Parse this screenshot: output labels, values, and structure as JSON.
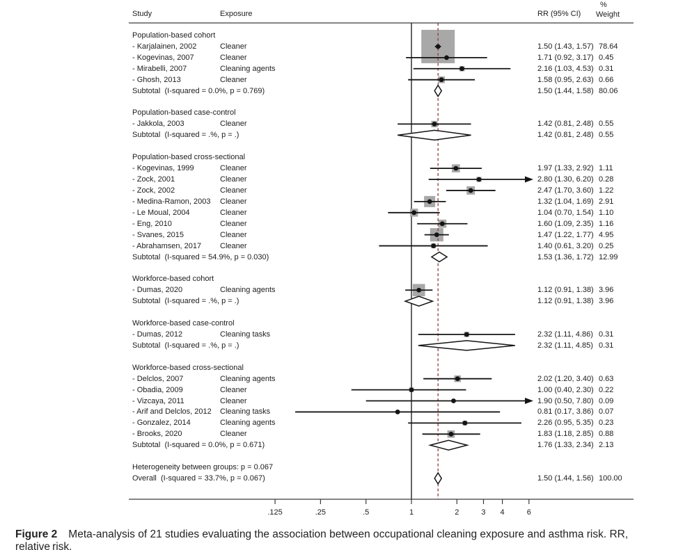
{
  "figure": {
    "caption_label": "Figure 2",
    "caption_text": "Meta-analysis of 21 studies evaluating the association between occupational cleaning exposure and asthma risk. RR, relative risk."
  },
  "chart_data": {
    "type": "forest",
    "columns": {
      "study": "Study",
      "exposure": "Exposure",
      "rr": "RR (95% CI)",
      "weight_pct_symbol": "%",
      "weight": "Weight"
    },
    "x_axis": {
      "scale": "log",
      "tick_labels": [
        ".125",
        ".25",
        ".5",
        "1",
        "2",
        "3",
        "4",
        "6"
      ],
      "tick_values": [
        0.125,
        0.25,
        0.5,
        1,
        2,
        3,
        4,
        6
      ],
      "null_value": 1,
      "overall_value": 1.5,
      "clip_upper": 6.1
    },
    "colors": {
      "overall_dashed_line": "#8e3b3b",
      "marker": "#141414",
      "weight_square": "#a8a8a8",
      "diamond_fill": "#ffffff",
      "rule": "#3a3a3a",
      "text": "#1c1c1c"
    },
    "groups": [
      {
        "label": "Population-based cohort",
        "studies": [
          {
            "study": "- Karjalainen, 2002",
            "exposure": "Cleaner",
            "rr": 1.5,
            "lo": 1.43,
            "hi": 1.57,
            "weight": 78.64
          },
          {
            "study": "- Kogevinas, 2007",
            "exposure": "Cleaner",
            "rr": 1.71,
            "lo": 0.92,
            "hi": 3.17,
            "weight": 0.45
          },
          {
            "study": "- Mirabelli, 2007",
            "exposure": "Cleaning agents",
            "rr": 2.16,
            "lo": 1.03,
            "hi": 4.53,
            "weight": 0.31
          },
          {
            "study": "- Ghosh, 2013",
            "exposure": "Cleaner",
            "rr": 1.58,
            "lo": 0.95,
            "hi": 2.63,
            "weight": 0.66
          }
        ],
        "subtotal": {
          "label": "Subtotal  (I-squared = 0.0%, p = 0.769)",
          "rr": 1.5,
          "lo": 1.44,
          "hi": 1.58,
          "weight": 80.06
        }
      },
      {
        "label": "Population-based case-control",
        "studies": [
          {
            "study": "- Jakkola, 2003",
            "exposure": "Cleaner",
            "rr": 1.42,
            "lo": 0.81,
            "hi": 2.48,
            "weight": 0.55
          }
        ],
        "subtotal": {
          "label": "Subtotal  (I-squared = .%, p = .)",
          "rr": 1.42,
          "lo": 0.81,
          "hi": 2.48,
          "weight": 0.55
        }
      },
      {
        "label": "Population-based cross-sectional",
        "studies": [
          {
            "study": "- Kogevinas, 1999",
            "exposure": "Cleaner",
            "rr": 1.97,
            "lo": 1.33,
            "hi": 2.92,
            "weight": 1.11
          },
          {
            "study": "- Zock, 2001",
            "exposure": "Cleaner",
            "rr": 2.8,
            "lo": 1.3,
            "hi": 6.2,
            "weight": 0.28
          },
          {
            "study": "- Zock, 2002",
            "exposure": "Cleaner",
            "rr": 2.47,
            "lo": 1.7,
            "hi": 3.6,
            "weight": 1.22
          },
          {
            "study": "- Medina-Ramon, 2003",
            "exposure": "Cleaner",
            "rr": 1.32,
            "lo": 1.04,
            "hi": 1.69,
            "weight": 2.91
          },
          {
            "study": "- Le Moual, 2004",
            "exposure": "Cleaner",
            "rr": 1.04,
            "lo": 0.7,
            "hi": 1.54,
            "weight": 1.1
          },
          {
            "study": "- Eng, 2010",
            "exposure": "Cleaner",
            "rr": 1.6,
            "lo": 1.09,
            "hi": 2.35,
            "weight": 1.16
          },
          {
            "study": "- Svanes, 2015",
            "exposure": "Cleaner",
            "rr": 1.47,
            "lo": 1.22,
            "hi": 1.77,
            "weight": 4.95
          },
          {
            "study": "- Abrahamsen, 2017",
            "exposure": "Cleaner",
            "rr": 1.4,
            "lo": 0.61,
            "hi": 3.2,
            "weight": 0.25
          }
        ],
        "subtotal": {
          "label": "Subtotal  (I-squared = 54.9%, p = 0.030)",
          "rr": 1.53,
          "lo": 1.36,
          "hi": 1.72,
          "weight": 12.99
        }
      },
      {
        "label": "Workforce-based cohort",
        "studies": [
          {
            "study": "- Dumas, 2020",
            "exposure": "Cleaning agents",
            "rr": 1.12,
            "lo": 0.91,
            "hi": 1.38,
            "weight": 3.96
          }
        ],
        "subtotal": {
          "label": "Subtotal  (I-squared = .%, p = .)",
          "rr": 1.12,
          "lo": 0.91,
          "hi": 1.38,
          "weight": 3.96
        }
      },
      {
        "label": "Workforce-based case-control",
        "studies": [
          {
            "study": "- Dumas, 2012",
            "exposure": "Cleaning tasks",
            "rr": 2.32,
            "lo": 1.11,
            "hi": 4.86,
            "weight": 0.31
          }
        ],
        "subtotal": {
          "label": "Subtotal  (I-squared = .%, p = .)",
          "rr": 2.32,
          "lo": 1.11,
          "hi": 4.85,
          "weight": 0.31
        }
      },
      {
        "label": "Workforce-based cross-sectional",
        "studies": [
          {
            "study": "- Delclos, 2007",
            "exposure": "Cleaning agents",
            "rr": 2.02,
            "lo": 1.2,
            "hi": 3.4,
            "weight": 0.63
          },
          {
            "study": "- Obadia, 2009",
            "exposure": "Cleaner",
            "rr": 1.0,
            "lo": 0.4,
            "hi": 2.3,
            "weight": 0.22
          },
          {
            "study": "- Vizcaya, 2011",
            "exposure": "Cleaner",
            "rr": 1.9,
            "lo": 0.5,
            "hi": 7.8,
            "weight": 0.09
          },
          {
            "study": "- Arif and Delclos, 2012",
            "exposure": "Cleaning tasks",
            "rr": 0.81,
            "lo": 0.17,
            "hi": 3.86,
            "weight": 0.07
          },
          {
            "study": "- Gonzalez, 2014",
            "exposure": "Cleaning agents",
            "rr": 2.26,
            "lo": 0.95,
            "hi": 5.35,
            "weight": 0.23
          },
          {
            "study": "- Brooks, 2020",
            "exposure": "Cleaner",
            "rr": 1.83,
            "lo": 1.18,
            "hi": 2.85,
            "weight": 0.88
          }
        ],
        "subtotal": {
          "label": "Subtotal  (I-squared = 0.0%, p = 0.671)",
          "rr": 1.76,
          "lo": 1.33,
          "hi": 2.34,
          "weight": 2.13
        }
      }
    ],
    "heterogeneity_note": "Heterogeneity between groups: p = 0.067",
    "overall": {
      "label": "Overall  (I-squared = 33.7%, p = 0.067)",
      "rr": 1.5,
      "lo": 1.44,
      "hi": 1.56,
      "weight": 100.0
    }
  }
}
